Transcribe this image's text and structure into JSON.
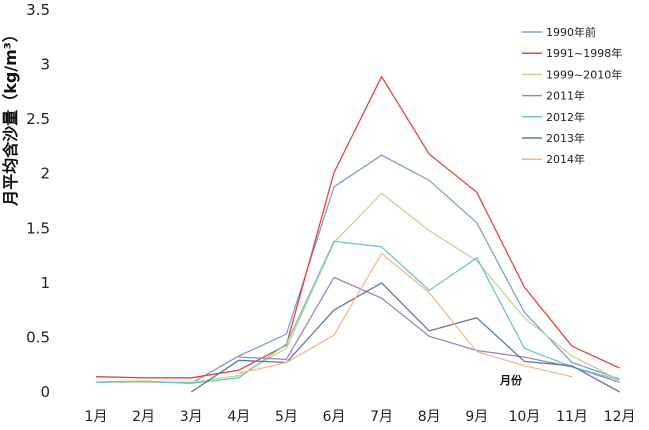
{
  "chart_data": {
    "type": "line",
    "title": "",
    "xlabel": "月份",
    "ylabel": "月平均含沙量（kg/m³）",
    "ylim": [
      0,
      3.5
    ],
    "yticks": [
      "0",
      "0.5",
      "1",
      "1.5",
      "2",
      "2.5",
      "3",
      "3.5"
    ],
    "categories": [
      "1月",
      "2月",
      "3月",
      "4月",
      "5月",
      "6月",
      "7月",
      "8月",
      "9月",
      "10月",
      "11月",
      "12月"
    ],
    "grid": false,
    "legend_position": "top-right",
    "series": [
      {
        "name": "1990年前",
        "color": "#7f9fd0",
        "values": [
          0.09,
          0.1,
          0.08,
          0.33,
          0.53,
          1.88,
          2.17,
          1.94,
          1.55,
          0.73,
          0.27,
          0.12
        ]
      },
      {
        "name": "1991~1998年",
        "color": "#e8463c",
        "values": [
          0.14,
          0.13,
          0.13,
          0.2,
          0.43,
          2.01,
          2.89,
          2.18,
          1.83,
          0.96,
          0.42,
          0.22
        ]
      },
      {
        "name": "1999~2010年",
        "color": "#c3d68f",
        "values": [
          0.09,
          0.09,
          0.09,
          0.15,
          0.4,
          1.37,
          1.82,
          1.48,
          1.2,
          0.68,
          0.33,
          0.11
        ]
      },
      {
        "name": "2011年",
        "color": "#9b86bf",
        "values": [
          null,
          null,
          null,
          0.32,
          0.3,
          1.05,
          0.86,
          0.51,
          0.38,
          0.32,
          0.23,
          0.09
        ]
      },
      {
        "name": "2012年",
        "color": "#72c4c6",
        "values": [
          0.09,
          0.1,
          0.08,
          0.13,
          0.44,
          1.38,
          1.33,
          0.93,
          1.23,
          0.4,
          0.23,
          0.11
        ]
      },
      {
        "name": "2013年",
        "color": "#5f7898",
        "values": [
          null,
          null,
          0.0,
          0.29,
          0.27,
          0.75,
          1.0,
          0.56,
          0.68,
          0.28,
          0.24,
          0.0
        ]
      },
      {
        "name": "2014年",
        "color": "#f4b98b",
        "values": [
          null,
          null,
          null,
          0.17,
          0.27,
          0.52,
          1.27,
          0.91,
          0.37,
          0.24,
          0.14,
          null
        ]
      }
    ]
  }
}
